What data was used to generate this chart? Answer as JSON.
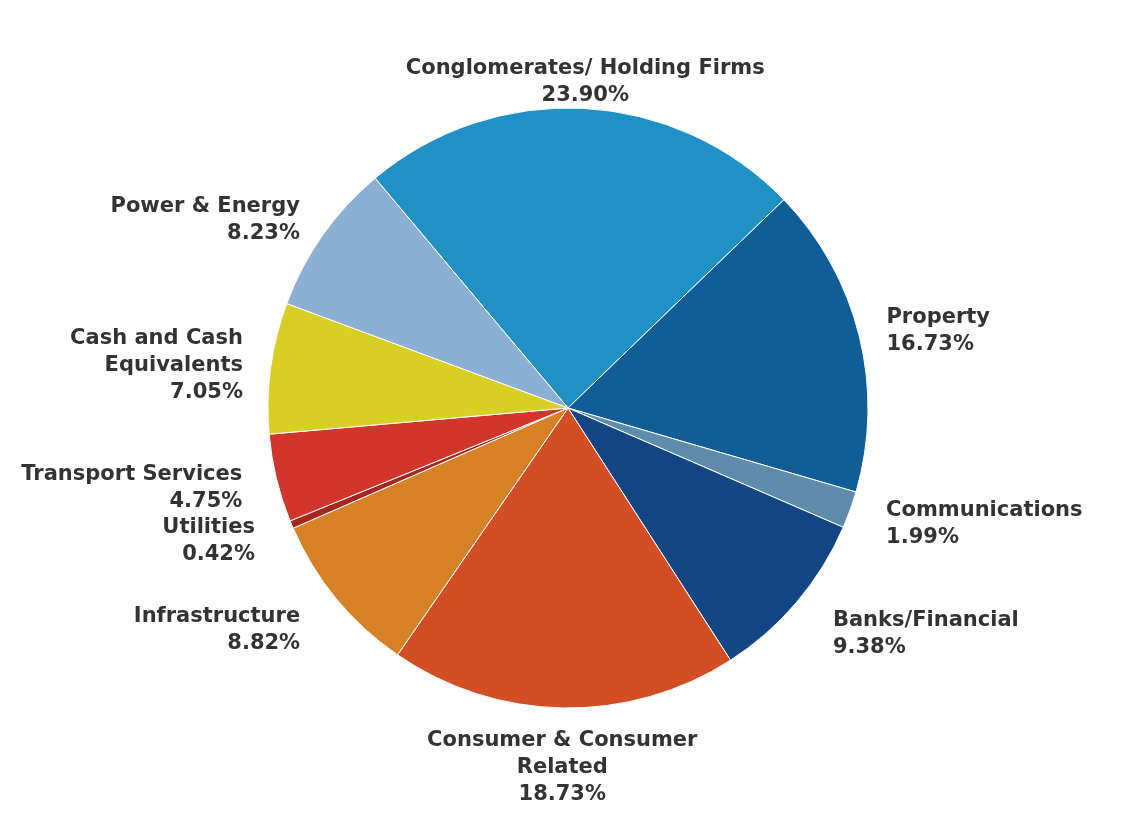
{
  "chart_data": {
    "type": "pie",
    "categories": [
      "Conglomerates/ Holding Firms",
      "Property",
      "Communications",
      "Banks/Financial",
      "Consumer & Consumer Related",
      "Infrastructure",
      "Utilities",
      "Transport Services",
      "Cash and Cash Equivalents",
      "Power & Energy"
    ],
    "values": [
      23.9,
      16.73,
      1.99,
      9.38,
      18.73,
      8.82,
      0.42,
      4.75,
      7.05,
      8.23
    ],
    "value_labels": [
      "23.90%",
      "16.73%",
      "1.99%",
      "9.38%",
      "18.73%",
      "8.82%",
      "0.42%",
      "4.75%",
      "7.05%",
      "8.23%"
    ],
    "colors": [
      "#2190c4",
      "#115d98",
      "#5f8cad",
      "#134682",
      "#d34e25",
      "#d68126",
      "#a82620",
      "#d2352c",
      "#d8cf24",
      "#8bb0d4"
    ],
    "legend": false
  }
}
